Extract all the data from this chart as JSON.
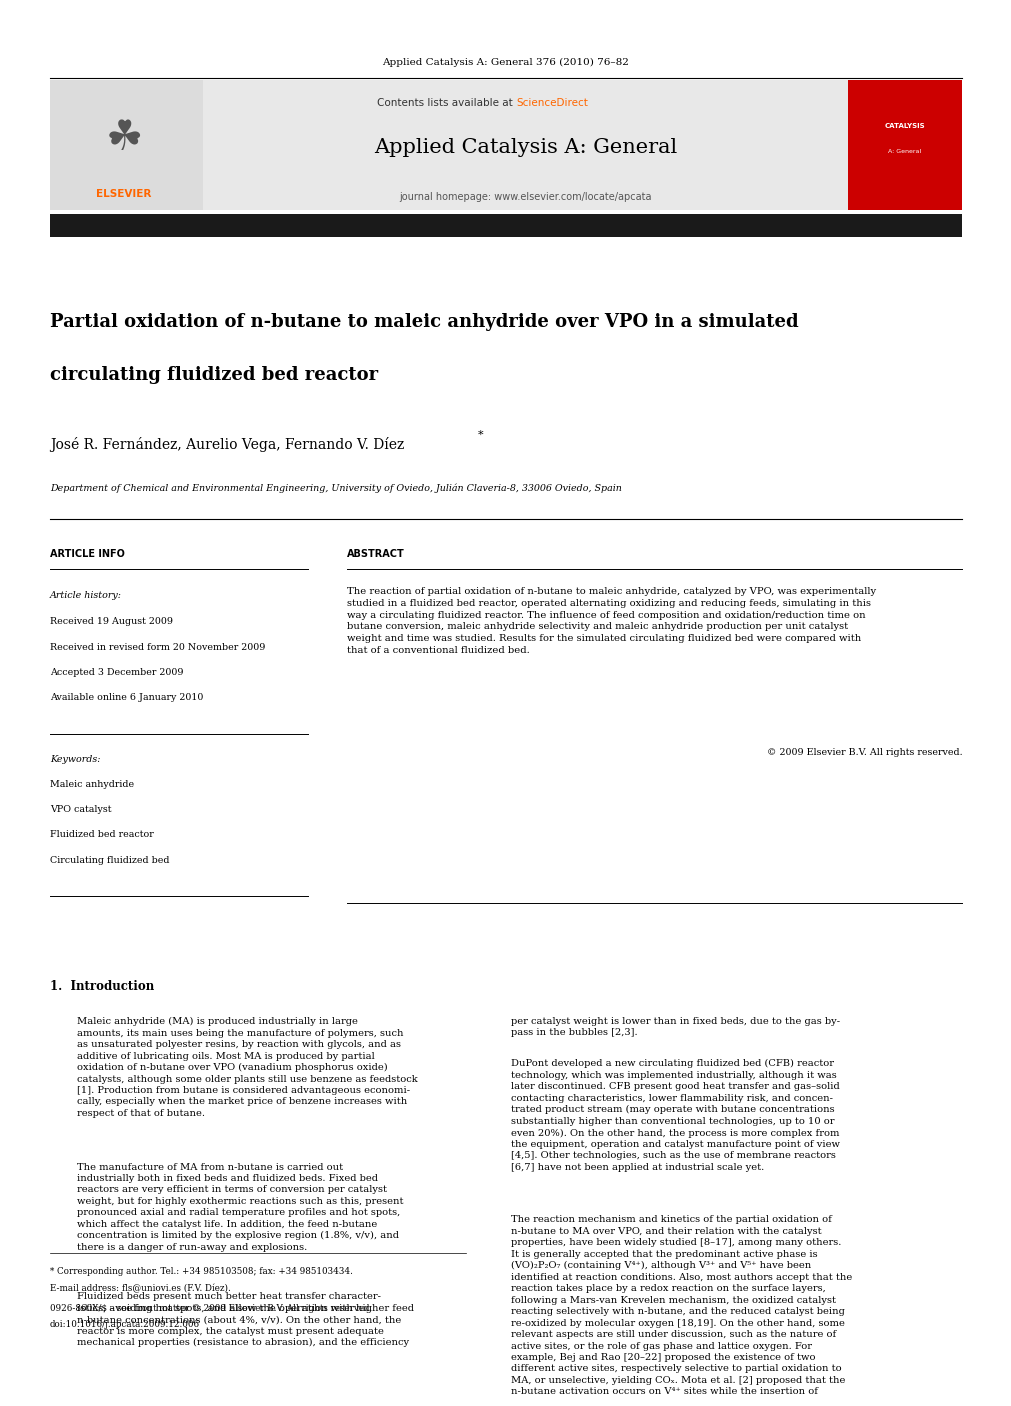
{
  "page_width": 9.92,
  "page_height": 13.23,
  "bg_color": "#ffffff",
  "header_journal_ref": "Applied Catalysis A: General 376 (2010) 76–82",
  "header_journal_ref_color": "#000000",
  "header_contents": "Contents lists available at ",
  "header_sciencedirect": "ScienceDirect",
  "header_sciencedirect_color": "#ff6600",
  "journal_title": "Applied Catalysis A: General",
  "journal_homepage": "journal homepage: www.elsevier.com/locate/apcata",
  "header_bg_color": "#e8e8e8",
  "black_bar_color": "#1a1a1a",
  "article_title_line1": "Partial oxidation of n-butane to maleic anhydride over VPO in a simulated",
  "article_title_line2": "circulating fluidized bed reactor",
  "authors": "José R. Fernández, Aurelio Vega, Fernando V. Díez",
  "affiliation": "Department of Chemical and Environmental Engineering, University of Oviedo, Julián Claveria-8, 33006 Oviedo, Spain",
  "article_info_header": "ARTICLE INFO",
  "abstract_header": "ABSTRACT",
  "article_history_label": "Article history:",
  "received1": "Received 19 August 2009",
  "received2": "Received in revised form 20 November 2009",
  "accepted": "Accepted 3 December 2009",
  "available": "Available online 6 January 2010",
  "keywords_label": "Keywords:",
  "keyword1": "Maleic anhydride",
  "keyword2": "VPO catalyst",
  "keyword3": "Fluidized bed reactor",
  "keyword4": "Circulating fluidized bed",
  "abstract_text": "The reaction of partial oxidation of n-butane to maleic anhydride, catalyzed by VPO, was experimentally\nstudied in a fluidized bed reactor, operated alternating oxidizing and reducing feeds, simulating in this\nway a circulating fluidized reactor. The influence of feed composition and oxidation/reduction time on\nbutane conversion, maleic anhydride selectivity and maleic anhydride production per unit catalyst\nweight and time was studied. Results for the simulated circulating fluidized bed were compared with\nthat of a conventional fluidized bed.",
  "copyright": "© 2009 Elsevier B.V. All rights reserved.",
  "section1_title": "1.  Introduction",
  "intro_col1_p1": "Maleic anhydride (MA) is produced industrially in large\namounts, its main uses being the manufacture of polymers, such\nas unsaturated polyester resins, by reaction with glycols, and as\nadditive of lubricating oils. Most MA is produced by partial\noxidation of n-butane over VPO (vanadium phosphorus oxide)\ncatalysts, although some older plants still use benzene as feedstock\n[1]. Production from butane is considered advantageous economi-\ncally, especially when the market price of benzene increases with\nrespect of that of butane.",
  "intro_col1_p2": "The manufacture of MA from n-butane is carried out\nindustrially both in fixed beds and fluidized beds. Fixed bed\nreactors are very efficient in terms of conversion per catalyst\nweight, but for highly exothermic reactions such as this, present\npronounced axial and radial temperature profiles and hot spots,\nwhich affect the catalyst life. In addition, the feed n-butane\nconcentration is limited by the explosive region (1.8%, v/v), and\nthere is a danger of run-away and explosions.",
  "intro_col1_p3": "Fluidized beds present much better heat transfer character-\nistics, avoiding hot spots, and allow the operation with higher feed\nn-butane concentrations (about 4%, v/v). On the other hand, the\nreactor is more complex, the catalyst must present adequate\nmechanical properties (resistance to abrasion), and the efficiency",
  "intro_col2_p1": "per catalyst weight is lower than in fixed beds, due to the gas by-\npass in the bubbles [2,3].",
  "intro_col2_p2": "DuPont developed a new circulating fluidized bed (CFB) reactor\ntechnology, which was implemented industrially, although it was\nlater discontinued. CFB present good heat transfer and gas–solid\ncontacting characteristics, lower flammability risk, and concen-\ntrated product stream (may operate with butane concentrations\nsubstantially higher than conventional technologies, up to 10 or\neven 20%). On the other hand, the process is more complex from\nthe equipment, operation and catalyst manufacture point of view\n[4,5]. Other technologies, such as the use of membrane reactors\n[6,7] have not been applied at industrial scale yet.",
  "intro_col2_p3": "The reaction mechanism and kinetics of the partial oxidation of\nn-butane to MA over VPO, and their relation with the catalyst\nproperties, have been widely studied [8–17], among many others.\nIt is generally accepted that the predominant active phase is\n(VO)₂P₂O₇ (containing V⁴⁺), although V³⁺ and V⁵⁺ have been\nidentified at reaction conditions. Also, most authors accept that the\nreaction takes place by a redox reaction on the surface layers,\nfollowing a Mars-van Krevelen mechanism, the oxidized catalyst\nreacting selectively with n-butane, and the reduced catalyst being\nre-oxidized by molecular oxygen [18,19]. On the other hand, some\nrelevant aspects are still under discussion, such as the nature of\nactive sites, or the role of gas phase and lattice oxygen. For\nexample, Bej and Rao [20–22] proposed the existence of two\ndifferent active sites, respectively selective to partial oxidation to\nMA, or unselective, yielding COₓ. Mota et al. [2] proposed that the\nn-butane activation occurs on V⁴⁺ sites while the insertion of",
  "footnote_star": "* Corresponding author. Tel.: +34 985103508; fax: +34 985103434.",
  "footnote_email": "E-mail address: fls@uniovi.es (F.V. Díez).",
  "footnote_issn": "0926-860X/$ – see front matter © 2009 Elsevier B.V. All rights reserved.",
  "footnote_doi": "doi:10.1016/j.apcata.2009.12.006"
}
